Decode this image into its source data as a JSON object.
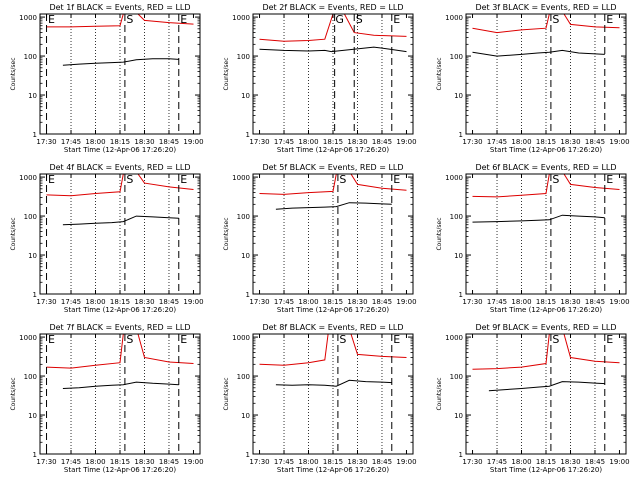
{
  "figure": {
    "background": "#ffffff",
    "colors": {
      "events": "#000000",
      "lld": "#dd0000",
      "axes": "#000000"
    }
  },
  "chart_data": [
    {
      "type": "line",
      "title": "Det 1f BLACK = Events, RED = LLD",
      "xlabel": "Start Time (12-Apr-06 17:26:20)",
      "ylabel": "Counts/sec",
      "x_ticks": [
        "17:30",
        "17:45",
        "18:00",
        "18:15",
        "18:30",
        "18:45",
        "19:00"
      ],
      "y_ticks": [
        "1",
        "10",
        "100",
        "1000"
      ],
      "yscale": "log",
      "ylim": [
        1,
        1200
      ],
      "markers": [
        {
          "label": "E",
          "time": "17:30"
        },
        {
          "label": "S",
          "time": "18:18"
        },
        {
          "label": "E",
          "time": "18:51"
        }
      ],
      "series": [
        {
          "name": "Events",
          "color": "#000000",
          "points": [
            [
              "17:40",
              58
            ],
            [
              "17:50",
              62
            ],
            [
              "18:00",
              65
            ],
            [
              "18:10",
              68
            ],
            [
              "18:17",
              70
            ],
            [
              "18:25",
              80
            ],
            [
              "18:35",
              85
            ],
            [
              "18:45",
              85
            ],
            [
              "18:51",
              82
            ]
          ]
        },
        {
          "name": "LLD",
          "color": "#dd0000",
          "points": [
            [
              "17:30",
              560
            ],
            [
              "17:45",
              560
            ],
            [
              "18:00",
              580
            ],
            [
              "18:15",
              600
            ],
            [
              "18:17",
              1200
            ],
            [
              "18:26",
              1200
            ],
            [
              "18:30",
              820
            ],
            [
              "18:45",
              720
            ],
            [
              "19:00",
              660
            ]
          ]
        }
      ]
    },
    {
      "type": "line",
      "title": "Det 2f BLACK = Events, RED = LLD",
      "xlabel": "Start Time (12-Apr-06 17:26:20)",
      "ylabel": "Counts/sec",
      "x_ticks": [
        "17:30",
        "17:45",
        "18:00",
        "18:15",
        "18:30",
        "18:45",
        "19:00"
      ],
      "y_ticks": [
        "1",
        "10",
        "100",
        "1000"
      ],
      "yscale": "log",
      "ylim": [
        1,
        1200
      ],
      "markers": [
        {
          "label": "G",
          "time": "18:16"
        },
        {
          "label": "S",
          "time": "18:28"
        },
        {
          "label": "E",
          "time": "18:51"
        }
      ],
      "series": [
        {
          "name": "Events",
          "color": "#000000",
          "points": [
            [
              "17:30",
              150
            ],
            [
              "17:45",
              140
            ],
            [
              "18:00",
              135
            ],
            [
              "18:10",
              140
            ],
            [
              "18:14",
              130
            ],
            [
              "18:40",
              170
            ],
            [
              "18:50",
              150
            ],
            [
              "19:00",
              130
            ]
          ]
        },
        {
          "name": "LLD",
          "color": "#dd0000",
          "points": [
            [
              "17:30",
              270
            ],
            [
              "17:45",
              240
            ],
            [
              "18:00",
              250
            ],
            [
              "18:10",
              270
            ],
            [
              "18:15",
              1200
            ],
            [
              "18:22",
              1200
            ],
            [
              "18:28",
              400
            ],
            [
              "18:40",
              340
            ],
            [
              "19:00",
              320
            ]
          ]
        }
      ]
    },
    {
      "type": "line",
      "title": "Det 3f BLACK = Events, RED = LLD",
      "xlabel": "Start Time (12-Apr-06 17:26:20)",
      "ylabel": "Counts/sec",
      "x_ticks": [
        "17:30",
        "17:45",
        "18:00",
        "18:15",
        "18:30",
        "18:45",
        "19:00"
      ],
      "y_ticks": [
        "1",
        "10",
        "100",
        "1000"
      ],
      "yscale": "log",
      "ylim": [
        1,
        1200
      ],
      "markers": [
        {
          "label": "S",
          "time": "18:18"
        },
        {
          "label": "E",
          "time": "18:51"
        }
      ],
      "series": [
        {
          "name": "Events",
          "color": "#000000",
          "points": [
            [
              "17:30",
              125
            ],
            [
              "17:45",
              100
            ],
            [
              "18:00",
              110
            ],
            [
              "18:10",
              120
            ],
            [
              "18:17",
              125
            ],
            [
              "18:25",
              140
            ],
            [
              "18:35",
              120
            ],
            [
              "18:51",
              110
            ]
          ]
        },
        {
          "name": "LLD",
          "color": "#dd0000",
          "points": [
            [
              "17:30",
              520
            ],
            [
              "17:45",
              400
            ],
            [
              "18:00",
              470
            ],
            [
              "18:15",
              520
            ],
            [
              "18:17",
              1200
            ],
            [
              "18:26",
              1200
            ],
            [
              "18:30",
              650
            ],
            [
              "18:45",
              560
            ],
            [
              "19:00",
              530
            ]
          ]
        }
      ]
    },
    {
      "type": "line",
      "title": "Det 4f BLACK = Events, RED = LLD",
      "xlabel": "Start Time (12-Apr-06 17:26:20)",
      "ylabel": "Counts/sec",
      "x_ticks": [
        "17:30",
        "17:45",
        "18:00",
        "18:15",
        "18:30",
        "18:45",
        "19:00"
      ],
      "y_ticks": [
        "1",
        "10",
        "100",
        "1000"
      ],
      "yscale": "log",
      "ylim": [
        1,
        1200
      ],
      "markers": [
        {
          "label": "E",
          "time": "17:30"
        },
        {
          "label": "S",
          "time": "18:18"
        },
        {
          "label": "E",
          "time": "18:51"
        }
      ],
      "series": [
        {
          "name": "Events",
          "color": "#000000",
          "points": [
            [
              "17:40",
              60
            ],
            [
              "17:50",
              62
            ],
            [
              "18:00",
              65
            ],
            [
              "18:10",
              68
            ],
            [
              "18:17",
              72
            ],
            [
              "18:25",
              100
            ],
            [
              "18:35",
              95
            ],
            [
              "18:45",
              90
            ],
            [
              "18:51",
              88
            ]
          ]
        },
        {
          "name": "LLD",
          "color": "#dd0000",
          "points": [
            [
              "17:30",
              350
            ],
            [
              "17:45",
              330
            ],
            [
              "18:00",
              380
            ],
            [
              "18:15",
              420
            ],
            [
              "18:17",
              1200
            ],
            [
              "18:26",
              1200
            ],
            [
              "18:30",
              700
            ],
            [
              "18:45",
              560
            ],
            [
              "19:00",
              480
            ]
          ]
        }
      ]
    },
    {
      "type": "line",
      "title": "Det 5f BLACK = Events, RED = LLD",
      "xlabel": "Start Time (12-Apr-06 17:26:20)",
      "ylabel": "Counts/sec",
      "x_ticks": [
        "17:30",
        "17:45",
        "18:00",
        "18:15",
        "18:30",
        "18:45",
        "19:00"
      ],
      "y_ticks": [
        "1",
        "10",
        "100",
        "1000"
      ],
      "yscale": "log",
      "ylim": [
        1,
        1200
      ],
      "markers": [
        {
          "label": "S",
          "time": "18:18"
        },
        {
          "label": "E",
          "time": "18:51"
        }
      ],
      "series": [
        {
          "name": "Events",
          "color": "#000000",
          "points": [
            [
              "17:40",
              150
            ],
            [
              "17:50",
              160
            ],
            [
              "18:00",
              165
            ],
            [
              "18:10",
              170
            ],
            [
              "18:17",
              175
            ],
            [
              "18:25",
              220
            ],
            [
              "18:35",
              215
            ],
            [
              "18:45",
              205
            ],
            [
              "18:51",
              200
            ]
          ]
        },
        {
          "name": "LLD",
          "color": "#dd0000",
          "points": [
            [
              "17:30",
              380
            ],
            [
              "17:45",
              360
            ],
            [
              "18:00",
              400
            ],
            [
              "18:15",
              430
            ],
            [
              "18:17",
              1200
            ],
            [
              "18:26",
              1200
            ],
            [
              "18:30",
              650
            ],
            [
              "18:45",
              520
            ],
            [
              "19:00",
              460
            ]
          ]
        }
      ]
    },
    {
      "type": "line",
      "title": "Det 6f BLACK = Events, RED = LLD",
      "xlabel": "Start Time (12-Apr-06 17:26:20)",
      "ylabel": "Counts/sec",
      "x_ticks": [
        "17:30",
        "17:45",
        "18:00",
        "18:15",
        "18:30",
        "18:45",
        "19:00"
      ],
      "y_ticks": [
        "1",
        "10",
        "100",
        "1000"
      ],
      "yscale": "log",
      "ylim": [
        1,
        1200
      ],
      "markers": [
        {
          "label": "S",
          "time": "18:18"
        },
        {
          "label": "E",
          "time": "18:51"
        }
      ],
      "series": [
        {
          "name": "Events",
          "color": "#000000",
          "points": [
            [
              "17:30",
              70
            ],
            [
              "17:45",
              72
            ],
            [
              "18:00",
              75
            ],
            [
              "18:10",
              78
            ],
            [
              "18:17",
              80
            ],
            [
              "18:25",
              105
            ],
            [
              "18:35",
              100
            ],
            [
              "18:45",
              95
            ],
            [
              "18:51",
              90
            ]
          ]
        },
        {
          "name": "LLD",
          "color": "#dd0000",
          "points": [
            [
              "17:30",
              320
            ],
            [
              "17:45",
              310
            ],
            [
              "18:00",
              340
            ],
            [
              "18:15",
              380
            ],
            [
              "18:17",
              1200
            ],
            [
              "18:26",
              1200
            ],
            [
              "18:30",
              650
            ],
            [
              "18:45",
              540
            ],
            [
              "19:00",
              480
            ]
          ]
        }
      ]
    },
    {
      "type": "line",
      "title": "Det 7f BLACK = Events, RED = LLD",
      "xlabel": "Start Time (12-Apr-06 17:26:20)",
      "ylabel": "Counts/sec",
      "x_ticks": [
        "17:30",
        "17:45",
        "18:00",
        "18:15",
        "18:30",
        "18:45",
        "19:00"
      ],
      "y_ticks": [
        "1",
        "10",
        "100",
        "1000"
      ],
      "yscale": "log",
      "ylim": [
        1,
        1200
      ],
      "markers": [
        {
          "label": "E",
          "time": "17:30"
        },
        {
          "label": "S",
          "time": "18:18"
        },
        {
          "label": "E",
          "time": "18:51"
        }
      ],
      "series": [
        {
          "name": "Events",
          "color": "#000000",
          "points": [
            [
              "17:40",
              48
            ],
            [
              "17:50",
              50
            ],
            [
              "18:00",
              55
            ],
            [
              "18:10",
              58
            ],
            [
              "18:17",
              60
            ],
            [
              "18:25",
              70
            ],
            [
              "18:35",
              65
            ],
            [
              "18:45",
              62
            ],
            [
              "18:51",
              60
            ]
          ]
        },
        {
          "name": "LLD",
          "color": "#dd0000",
          "points": [
            [
              "17:30",
              170
            ],
            [
              "17:45",
              160
            ],
            [
              "18:00",
              190
            ],
            [
              "18:15",
              220
            ],
            [
              "18:17",
              1200
            ],
            [
              "18:26",
              1200
            ],
            [
              "18:30",
              300
            ],
            [
              "18:45",
              230
            ],
            [
              "19:00",
              210
            ]
          ]
        }
      ]
    },
    {
      "type": "line",
      "title": "Det 8f BLACK = Events, RED = LLD",
      "xlabel": "Start Time (12-Apr-06 17:26:20)",
      "ylabel": "Counts/sec",
      "x_ticks": [
        "17:30",
        "17:45",
        "18:00",
        "18:15",
        "18:30",
        "18:45",
        "19:00"
      ],
      "y_ticks": [
        "1",
        "10",
        "100",
        "1000"
      ],
      "yscale": "log",
      "ylim": [
        1,
        1200
      ],
      "markers": [
        {
          "label": "S",
          "time": "18:18"
        },
        {
          "label": "E",
          "time": "18:51"
        }
      ],
      "series": [
        {
          "name": "Events",
          "color": "#000000",
          "points": [
            [
              "17:40",
              60
            ],
            [
              "17:50",
              58
            ],
            [
              "18:00",
              60
            ],
            [
              "18:10",
              58
            ],
            [
              "18:17",
              55
            ],
            [
              "18:25",
              78
            ],
            [
              "18:35",
              72
            ],
            [
              "18:45",
              70
            ],
            [
              "18:51",
              68
            ]
          ]
        },
        {
          "name": "LLD",
          "color": "#dd0000",
          "points": [
            [
              "17:30",
              200
            ],
            [
              "17:45",
              190
            ],
            [
              "18:00",
              220
            ],
            [
              "18:10",
              260
            ],
            [
              "18:12",
              1200
            ],
            [
              "18:26",
              1200
            ],
            [
              "18:30",
              360
            ],
            [
              "18:45",
              320
            ],
            [
              "19:00",
              300
            ]
          ]
        }
      ]
    },
    {
      "type": "line",
      "title": "Det 9f BLACK = Events, RED = LLD",
      "xlabel": "Start Time (12-Apr-06 17:26:20)",
      "ylabel": "Counts/sec",
      "x_ticks": [
        "17:30",
        "17:45",
        "18:00",
        "18:15",
        "18:30",
        "18:45",
        "19:00"
      ],
      "y_ticks": [
        "1",
        "10",
        "100",
        "1000"
      ],
      "yscale": "log",
      "ylim": [
        1,
        1200
      ],
      "markers": [
        {
          "label": "S",
          "time": "18:18"
        },
        {
          "label": "E",
          "time": "18:51"
        }
      ],
      "series": [
        {
          "name": "Events",
          "color": "#000000",
          "points": [
            [
              "17:40",
              42
            ],
            [
              "17:50",
              45
            ],
            [
              "18:00",
              48
            ],
            [
              "18:10",
              52
            ],
            [
              "18:17",
              55
            ],
            [
              "18:25",
              72
            ],
            [
              "18:35",
              70
            ],
            [
              "18:45",
              66
            ],
            [
              "18:51",
              64
            ]
          ]
        },
        {
          "name": "LLD",
          "color": "#dd0000",
          "points": [
            [
              "17:30",
              150
            ],
            [
              "17:45",
              155
            ],
            [
              "18:00",
              170
            ],
            [
              "18:15",
              210
            ],
            [
              "18:17",
              1200
            ],
            [
              "18:26",
              1200
            ],
            [
              "18:30",
              300
            ],
            [
              "18:45",
              240
            ],
            [
              "19:00",
              220
            ]
          ]
        }
      ]
    }
  ]
}
